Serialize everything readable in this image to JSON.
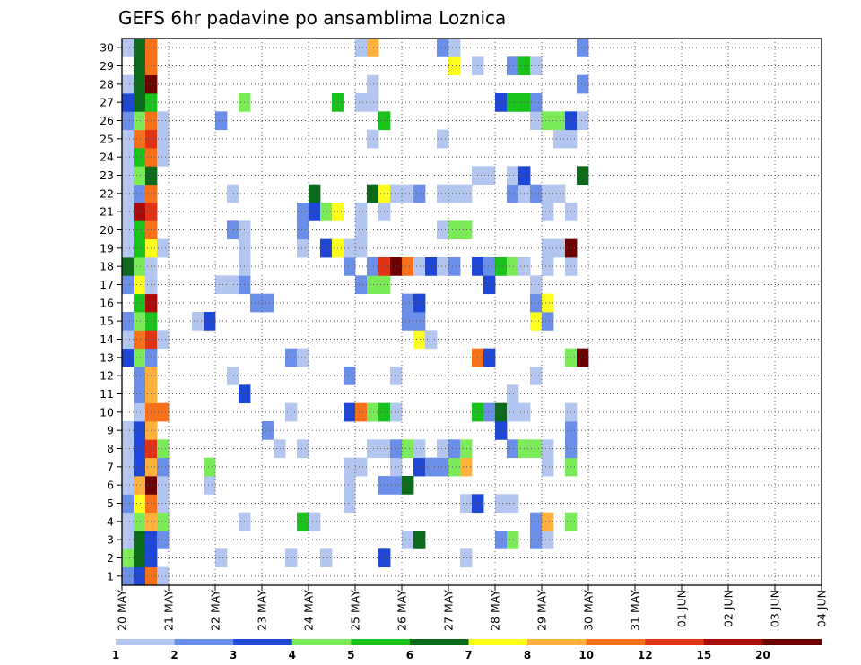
{
  "chart_data": {
    "type": "heatmap",
    "title": "GEFS 6hr padavine po ansamblima Loznica",
    "xlabel": "",
    "ylabel": "",
    "x_labels": [
      "20 MAY",
      "21 MAY",
      "22 MAY",
      "23 MAY",
      "24 MAY",
      "25 MAY",
      "26 MAY",
      "27 MAY",
      "28 MAY",
      "29 MAY",
      "30 MAY",
      "31 MAY",
      "01 JUN",
      "02 JUN",
      "03 JUN",
      "04 JUN"
    ],
    "y_labels": [
      "1",
      "2",
      "3",
      "4",
      "5",
      "6",
      "7",
      "8",
      "9",
      "10",
      "11",
      "12",
      "13",
      "14",
      "15",
      "16",
      "17",
      "18",
      "19",
      "20",
      "21",
      "22",
      "23",
      "24",
      "25",
      "26",
      "27",
      "28",
      "29",
      "30"
    ],
    "steps_per_day": 4,
    "grid": true,
    "colorbar": {
      "labels": [
        "1",
        "2",
        "3",
        "4",
        "5",
        "6",
        "7",
        "8",
        "10",
        "12",
        "15",
        "20"
      ],
      "colors": [
        "#b3c6f0",
        "#6b8ee8",
        "#1f47d6",
        "#7ceb5a",
        "#19c21c",
        "#0b6b1a",
        "#ffff1e",
        "#ffb13c",
        "#f7701a",
        "#e03215",
        "#a90b0b",
        "#6b0000"
      ]
    },
    "cells": [
      [
        1,
        0,
        2
      ],
      [
        1,
        1,
        3
      ],
      [
        1,
        2,
        9
      ],
      [
        1,
        3,
        1
      ],
      [
        2,
        0,
        4
      ],
      [
        2,
        1,
        6
      ],
      [
        2,
        2,
        3
      ],
      [
        2,
        8,
        1
      ],
      [
        2,
        14,
        1
      ],
      [
        2,
        17,
        1
      ],
      [
        2,
        22,
        3
      ],
      [
        2,
        29,
        1
      ],
      [
        3,
        0,
        1
      ],
      [
        3,
        1,
        6
      ],
      [
        3,
        2,
        3
      ],
      [
        3,
        3,
        2
      ],
      [
        3,
        24,
        1
      ],
      [
        3,
        25,
        6
      ],
      [
        3,
        32,
        2
      ],
      [
        3,
        33,
        4
      ],
      [
        3,
        35,
        2
      ],
      [
        3,
        36,
        1
      ],
      [
        4,
        0,
        1
      ],
      [
        4,
        1,
        4
      ],
      [
        4,
        2,
        8
      ],
      [
        4,
        3,
        4
      ],
      [
        4,
        10,
        1
      ],
      [
        4,
        15,
        5
      ],
      [
        4,
        16,
        1
      ],
      [
        4,
        35,
        2
      ],
      [
        4,
        36,
        8
      ],
      [
        4,
        38,
        4
      ],
      [
        5,
        0,
        2
      ],
      [
        5,
        1,
        7
      ],
      [
        5,
        2,
        9
      ],
      [
        5,
        3,
        1
      ],
      [
        5,
        19,
        1
      ],
      [
        5,
        29,
        1
      ],
      [
        5,
        30,
        3
      ],
      [
        5,
        32,
        1
      ],
      [
        5,
        33,
        1
      ],
      [
        6,
        0,
        1
      ],
      [
        6,
        1,
        8
      ],
      [
        6,
        2,
        12
      ],
      [
        6,
        3,
        1
      ],
      [
        6,
        7,
        1
      ],
      [
        6,
        19,
        1
      ],
      [
        6,
        22,
        2
      ],
      [
        6,
        23,
        2
      ],
      [
        6,
        24,
        6
      ],
      [
        7,
        0,
        1
      ],
      [
        7,
        1,
        3
      ],
      [
        7,
        2,
        8
      ],
      [
        7,
        3,
        2
      ],
      [
        7,
        7,
        4
      ],
      [
        7,
        19,
        1
      ],
      [
        7,
        20,
        1
      ],
      [
        7,
        23,
        1
      ],
      [
        7,
        25,
        3
      ],
      [
        7,
        26,
        2
      ],
      [
        7,
        27,
        2
      ],
      [
        7,
        28,
        4
      ],
      [
        7,
        29,
        8
      ],
      [
        7,
        36,
        1
      ],
      [
        7,
        38,
        4
      ],
      [
        8,
        0,
        1
      ],
      [
        8,
        1,
        3
      ],
      [
        8,
        2,
        10
      ],
      [
        8,
        3,
        4
      ],
      [
        8,
        13,
        1
      ],
      [
        8,
        15,
        1
      ],
      [
        8,
        21,
        1
      ],
      [
        8,
        22,
        1
      ],
      [
        8,
        23,
        2
      ],
      [
        8,
        24,
        4
      ],
      [
        8,
        25,
        1
      ],
      [
        8,
        27,
        1
      ],
      [
        8,
        28,
        2
      ],
      [
        8,
        29,
        4
      ],
      [
        8,
        33,
        2
      ],
      [
        8,
        34,
        4
      ],
      [
        8,
        35,
        4
      ],
      [
        8,
        36,
        1
      ],
      [
        8,
        38,
        2
      ],
      [
        9,
        0,
        1
      ],
      [
        9,
        1,
        3
      ],
      [
        9,
        2,
        8
      ],
      [
        9,
        12,
        2
      ],
      [
        9,
        32,
        3
      ],
      [
        9,
        38,
        2
      ],
      [
        10,
        1,
        1
      ],
      [
        10,
        2,
        9
      ],
      [
        10,
        3,
        9
      ],
      [
        10,
        14,
        1
      ],
      [
        10,
        19,
        3
      ],
      [
        10,
        20,
        9
      ],
      [
        10,
        21,
        4
      ],
      [
        10,
        22,
        5
      ],
      [
        10,
        23,
        1
      ],
      [
        10,
        30,
        5
      ],
      [
        10,
        31,
        2
      ],
      [
        10,
        32,
        6
      ],
      [
        10,
        33,
        1
      ],
      [
        10,
        34,
        1
      ],
      [
        10,
        38,
        1
      ],
      [
        11,
        1,
        2
      ],
      [
        11,
        2,
        8
      ],
      [
        11,
        10,
        3
      ],
      [
        11,
        33,
        1
      ],
      [
        12,
        1,
        2
      ],
      [
        12,
        2,
        8
      ],
      [
        12,
        9,
        1
      ],
      [
        12,
        19,
        2
      ],
      [
        12,
        23,
        1
      ],
      [
        12,
        35,
        1
      ],
      [
        13,
        0,
        3
      ],
      [
        13,
        1,
        4
      ],
      [
        13,
        2,
        2
      ],
      [
        13,
        14,
        2
      ],
      [
        13,
        15,
        1
      ],
      [
        13,
        30,
        9
      ],
      [
        13,
        31,
        3
      ],
      [
        13,
        38,
        4
      ],
      [
        13,
        39,
        12
      ],
      [
        14,
        0,
        1
      ],
      [
        14,
        1,
        9
      ],
      [
        14,
        2,
        10
      ],
      [
        14,
        3,
        1
      ],
      [
        14,
        25,
        7
      ],
      [
        14,
        26,
        1
      ],
      [
        15,
        0,
        2
      ],
      [
        15,
        1,
        4
      ],
      [
        15,
        2,
        5
      ],
      [
        15,
        6,
        1
      ],
      [
        15,
        7,
        3
      ],
      [
        15,
        24,
        2
      ],
      [
        15,
        25,
        2
      ],
      [
        15,
        35,
        7
      ],
      [
        15,
        36,
        2
      ],
      [
        16,
        1,
        5
      ],
      [
        16,
        2,
        11
      ],
      [
        16,
        11,
        2
      ],
      [
        16,
        12,
        2
      ],
      [
        16,
        24,
        2
      ],
      [
        16,
        25,
        3
      ],
      [
        16,
        35,
        2
      ],
      [
        16,
        36,
        7
      ],
      [
        17,
        0,
        2
      ],
      [
        17,
        1,
        7
      ],
      [
        17,
        2,
        1
      ],
      [
        17,
        8,
        1
      ],
      [
        17,
        9,
        1
      ],
      [
        17,
        10,
        2
      ],
      [
        17,
        20,
        2
      ],
      [
        17,
        21,
        4
      ],
      [
        17,
        22,
        4
      ],
      [
        17,
        31,
        3
      ],
      [
        17,
        35,
        1
      ],
      [
        18,
        0,
        6
      ],
      [
        18,
        1,
        4
      ],
      [
        18,
        2,
        1
      ],
      [
        18,
        10,
        1
      ],
      [
        18,
        19,
        2
      ],
      [
        18,
        21,
        2
      ],
      [
        18,
        22,
        10
      ],
      [
        18,
        23,
        12
      ],
      [
        18,
        24,
        9
      ],
      [
        18,
        25,
        1
      ],
      [
        18,
        26,
        3
      ],
      [
        18,
        27,
        1
      ],
      [
        18,
        28,
        2
      ],
      [
        18,
        30,
        3
      ],
      [
        18,
        31,
        2
      ],
      [
        18,
        32,
        5
      ],
      [
        18,
        33,
        4
      ],
      [
        18,
        34,
        1
      ],
      [
        18,
        36,
        1
      ],
      [
        18,
        38,
        1
      ],
      [
        19,
        0,
        1
      ],
      [
        19,
        1,
        5
      ],
      [
        19,
        2,
        7
      ],
      [
        19,
        3,
        1
      ],
      [
        19,
        10,
        1
      ],
      [
        19,
        15,
        1
      ],
      [
        19,
        17,
        3
      ],
      [
        19,
        18,
        7
      ],
      [
        19,
        19,
        1
      ],
      [
        19,
        20,
        1
      ],
      [
        19,
        36,
        1
      ],
      [
        19,
        37,
        1
      ],
      [
        19,
        38,
        12
      ],
      [
        20,
        0,
        1
      ],
      [
        20,
        1,
        5
      ],
      [
        20,
        2,
        9
      ],
      [
        20,
        9,
        2
      ],
      [
        20,
        10,
        1
      ],
      [
        20,
        15,
        2
      ],
      [
        20,
        20,
        1
      ],
      [
        20,
        27,
        1
      ],
      [
        20,
        28,
        4
      ],
      [
        20,
        29,
        4
      ],
      [
        21,
        0,
        1
      ],
      [
        21,
        1,
        11
      ],
      [
        21,
        2,
        10
      ],
      [
        21,
        15,
        2
      ],
      [
        21,
        16,
        3
      ],
      [
        21,
        17,
        4
      ],
      [
        21,
        18,
        7
      ],
      [
        21,
        20,
        1
      ],
      [
        21,
        22,
        1
      ],
      [
        21,
        36,
        1
      ],
      [
        21,
        38,
        1
      ],
      [
        22,
        0,
        1
      ],
      [
        22,
        1,
        2
      ],
      [
        22,
        2,
        9
      ],
      [
        22,
        9,
        1
      ],
      [
        22,
        16,
        6
      ],
      [
        22,
        21,
        6
      ],
      [
        22,
        22,
        7
      ],
      [
        22,
        23,
        1
      ],
      [
        22,
        24,
        1
      ],
      [
        22,
        25,
        2
      ],
      [
        22,
        27,
        1
      ],
      [
        22,
        28,
        1
      ],
      [
        22,
        29,
        1
      ],
      [
        22,
        33,
        2
      ],
      [
        22,
        34,
        1
      ],
      [
        22,
        35,
        2
      ],
      [
        22,
        36,
        1
      ],
      [
        22,
        37,
        1
      ],
      [
        23,
        0,
        1
      ],
      [
        23,
        1,
        4
      ],
      [
        23,
        2,
        6
      ],
      [
        23,
        30,
        1
      ],
      [
        23,
        31,
        1
      ],
      [
        23,
        33,
        1
      ],
      [
        23,
        34,
        3
      ],
      [
        23,
        39,
        6
      ],
      [
        24,
        0,
        1
      ],
      [
        24,
        1,
        5
      ],
      [
        24,
        2,
        9
      ],
      [
        24,
        3,
        1
      ],
      [
        25,
        0,
        1
      ],
      [
        25,
        1,
        9
      ],
      [
        25,
        2,
        10
      ],
      [
        25,
        3,
        1
      ],
      [
        25,
        21,
        1
      ],
      [
        25,
        27,
        1
      ],
      [
        25,
        37,
        1
      ],
      [
        25,
        38,
        1
      ],
      [
        26,
        0,
        2
      ],
      [
        26,
        1,
        4
      ],
      [
        26,
        2,
        9
      ],
      [
        26,
        3,
        1
      ],
      [
        26,
        8,
        2
      ],
      [
        26,
        22,
        5
      ],
      [
        26,
        35,
        1
      ],
      [
        26,
        36,
        4
      ],
      [
        26,
        37,
        4
      ],
      [
        26,
        38,
        3
      ],
      [
        26,
        39,
        1
      ],
      [
        27,
        0,
        3
      ],
      [
        27,
        1,
        6
      ],
      [
        27,
        2,
        5
      ],
      [
        27,
        10,
        4
      ],
      [
        27,
        18,
        5
      ],
      [
        27,
        20,
        1
      ],
      [
        27,
        21,
        1
      ],
      [
        27,
        32,
        3
      ],
      [
        27,
        33,
        5
      ],
      [
        27,
        34,
        5
      ],
      [
        27,
        35,
        2
      ],
      [
        28,
        0,
        1
      ],
      [
        28,
        1,
        6
      ],
      [
        28,
        2,
        12
      ],
      [
        28,
        21,
        1
      ],
      [
        28,
        39,
        2
      ],
      [
        29,
        1,
        6
      ],
      [
        29,
        2,
        9
      ],
      [
        29,
        28,
        7
      ],
      [
        29,
        30,
        1
      ],
      [
        29,
        33,
        2
      ],
      [
        29,
        34,
        5
      ],
      [
        29,
        35,
        1
      ],
      [
        30,
        0,
        1
      ],
      [
        30,
        1,
        6
      ],
      [
        30,
        2,
        9
      ],
      [
        30,
        20,
        1
      ],
      [
        30,
        21,
        8
      ],
      [
        30,
        27,
        2
      ],
      [
        30,
        28,
        1
      ],
      [
        30,
        39,
        2
      ]
    ]
  }
}
